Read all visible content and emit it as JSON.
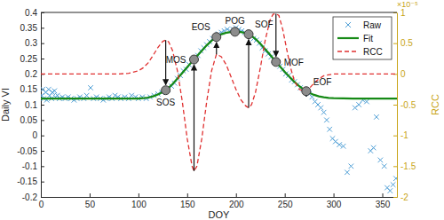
{
  "chart_data": {
    "type": "line",
    "x_label": "DOY",
    "y_label": "Daily VI",
    "y2_label": "RCC",
    "y2_exponent_label": "×10⁻⁵",
    "xlim": [
      0,
      365
    ],
    "xticks": [
      0,
      50,
      100,
      150,
      200,
      250,
      300,
      350
    ],
    "ylim": [
      -0.2,
      0.4
    ],
    "yticks": [
      -0.2,
      -0.15,
      -0.1,
      -0.05,
      0,
      0.05,
      0.1,
      0.15,
      0.2,
      0.25,
      0.3,
      0.35,
      0.4
    ],
    "y2lim": [
      -2,
      1
    ],
    "y2ticks": [
      -2,
      -1.5,
      -1,
      -0.5,
      0,
      0.5,
      1
    ],
    "legend": "upper right",
    "series": [
      {
        "name": "Raw",
        "type": "scatter",
        "marker": "x",
        "color": "#4f9fd6",
        "x": [
          1,
          2,
          3,
          5,
          6,
          8,
          9,
          11,
          12,
          14,
          15,
          17,
          19,
          22,
          25,
          28,
          31,
          34,
          37,
          40,
          44,
          47,
          51,
          54,
          57,
          61,
          64,
          67,
          70,
          73,
          76,
          79,
          82,
          86,
          90,
          93,
          97,
          100,
          104,
          108,
          112,
          116,
          120,
          124,
          127,
          130,
          134,
          137,
          140,
          143,
          146,
          149,
          152,
          155,
          158,
          161,
          164,
          167,
          170,
          173,
          176,
          179,
          182,
          185,
          188,
          191,
          194,
          197,
          200,
          203,
          206,
          209,
          212,
          215,
          218,
          221,
          224,
          227,
          230,
          233,
          236,
          239,
          242,
          245,
          248,
          251,
          254,
          257,
          260,
          263,
          266,
          269,
          272,
          275,
          278,
          281,
          284,
          287,
          290,
          293,
          296,
          299,
          302,
          306,
          310,
          314,
          318,
          322,
          326,
          330,
          334,
          338,
          341,
          344,
          348,
          352,
          355,
          358,
          361,
          364
        ],
        "values": [
          0.13,
          0.15,
          0.12,
          0.14,
          0.115,
          0.15,
          0.13,
          0.12,
          0.14,
          0.145,
          0.125,
          0.13,
          0.12,
          0.125,
          0.12,
          0.125,
          0.12,
          0.115,
          0.12,
          0.125,
          0.12,
          0.13,
          0.155,
          0.12,
          0.125,
          0.12,
          0.115,
          0.12,
          0.125,
          0.12,
          0.13,
          0.125,
          0.12,
          0.125,
          0.12,
          0.13,
          0.125,
          0.12,
          0.125,
          0.12,
          0.125,
          0.13,
          0.135,
          0.14,
          0.145,
          0.15,
          0.16,
          0.17,
          0.185,
          0.195,
          0.21,
          0.215,
          0.23,
          0.24,
          0.25,
          0.26,
          0.275,
          0.285,
          0.295,
          0.305,
          0.315,
          0.32,
          0.33,
          0.335,
          0.34,
          0.345,
          0.34,
          0.345,
          0.35,
          0.345,
          0.34,
          0.335,
          0.33,
          0.325,
          0.315,
          0.31,
          0.3,
          0.285,
          0.275,
          0.265,
          0.255,
          0.245,
          0.235,
          0.225,
          0.215,
          0.2,
          0.195,
          0.18,
          0.175,
          0.165,
          0.155,
          0.15,
          0.14,
          0.135,
          0.125,
          0.11,
          0.1,
          0.09,
          0.075,
          0.05,
          0.02,
          -0.01,
          -0.02,
          -0.03,
          -0.035,
          -0.12,
          -0.1,
          0.09,
          0.1,
          0.115,
          0.11,
          -0.05,
          -0.04,
          0.06,
          -0.08,
          -0.1,
          -0.17,
          -0.18,
          -0.16,
          -0.14
        ]
      },
      {
        "name": "Fit",
        "type": "line",
        "line_style": "solid",
        "color": "#168a16",
        "x": [
          0,
          20,
          40,
          60,
          80,
          100,
          105,
          110,
          115,
          120,
          125,
          130,
          135,
          140,
          145,
          150,
          155,
          160,
          165,
          170,
          175,
          180,
          185,
          190,
          195,
          200,
          205,
          210,
          215,
          220,
          225,
          230,
          235,
          240,
          245,
          250,
          255,
          260,
          265,
          270,
          275,
          280,
          285,
          290,
          295,
          300,
          320,
          340,
          365
        ],
        "values": [
          0.12,
          0.12,
          0.12,
          0.12,
          0.12,
          0.12,
          0.121,
          0.123,
          0.127,
          0.133,
          0.141,
          0.152,
          0.167,
          0.185,
          0.203,
          0.222,
          0.24,
          0.258,
          0.275,
          0.293,
          0.308,
          0.32,
          0.329,
          0.334,
          0.336,
          0.337,
          0.336,
          0.333,
          0.326,
          0.314,
          0.298,
          0.28,
          0.262,
          0.243,
          0.225,
          0.207,
          0.19,
          0.174,
          0.16,
          0.148,
          0.139,
          0.132,
          0.127,
          0.124,
          0.122,
          0.121,
          0.12,
          0.12,
          0.12
        ]
      },
      {
        "name": "RCC",
        "type": "line",
        "line_style": "dashed",
        "color": "#e03131",
        "axis": "y2",
        "x": [
          0,
          20,
          40,
          60,
          80,
          90,
          100,
          105,
          110,
          115,
          120,
          125,
          128,
          131,
          135,
          140,
          145,
          150,
          155,
          157,
          160,
          165,
          170,
          175,
          180,
          185,
          190,
          195,
          200,
          205,
          210,
          213,
          216,
          220,
          225,
          230,
          235,
          238,
          241,
          244,
          248,
          252,
          256,
          260,
          265,
          268,
          272,
          276,
          280,
          285,
          290,
          300,
          320,
          340,
          365
        ],
        "values": [
          0,
          0,
          0,
          0,
          0,
          0.01,
          0.05,
          0.1,
          0.18,
          0.3,
          0.43,
          0.53,
          0.55,
          0.52,
          0.38,
          0.05,
          -0.45,
          -1.05,
          -1.5,
          -1.58,
          -1.5,
          -1.05,
          -0.45,
          0.05,
          0.32,
          0.28,
          0.15,
          -0.05,
          -0.25,
          -0.42,
          -0.52,
          -0.55,
          -0.5,
          -0.3,
          0.1,
          0.55,
          0.88,
          0.97,
          0.98,
          0.95,
          0.72,
          0.4,
          0.1,
          -0.12,
          -0.25,
          -0.27,
          -0.29,
          -0.22,
          -0.15,
          -0.08,
          -0.03,
          0,
          0,
          0,
          0
        ]
      }
    ],
    "annotations": [
      {
        "text": "SOS",
        "x": 128,
        "y": 0.147
      },
      {
        "text": "MOS",
        "x": 157,
        "y": 0.247
      },
      {
        "text": "EOS",
        "x": 180,
        "y": 0.32
      },
      {
        "text": "POG",
        "x": 199,
        "y": 0.337
      },
      {
        "text": "SOF",
        "x": 213,
        "y": 0.329
      },
      {
        "text": "MOF",
        "x": 241,
        "y": 0.239
      },
      {
        "text": "EOF",
        "x": 272,
        "y": 0.144
      }
    ]
  }
}
